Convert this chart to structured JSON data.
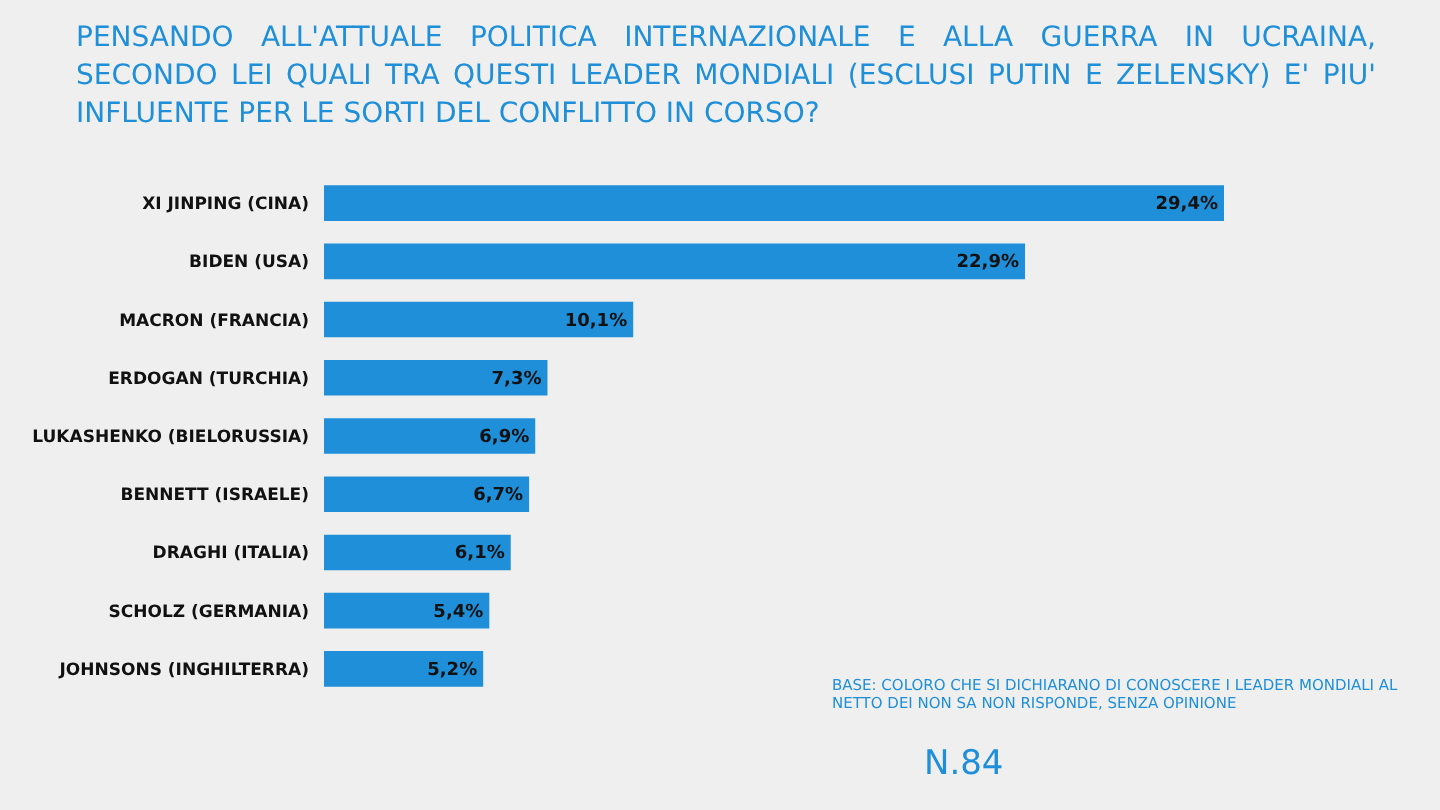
{
  "chart_data": {
    "type": "bar",
    "orientation": "horizontal",
    "title": "PENSANDO ALL'ATTUALE POLITICA INTERNAZIONALE E ALLA GUERRA IN UCRAINA, SECONDO LEI QUALI TRA QUESTI LEADER MONDIALI (ESCLUSI PUTIN E ZELENSKY) E' PIU' INFLUENTE PER LE SORTI DEL CONFLITTO IN CORSO?",
    "categories": [
      "XI JINPING (CINA)",
      "BIDEN (USA)",
      "MACRON (FRANCIA)",
      "ERDOGAN (TURCHIA)",
      "LUKASHENKO (BIELORUSSIA)",
      "BENNETT (ISRAELE)",
      "DRAGHI (ITALIA)",
      "SCHOLZ (GERMANIA)",
      "JOHNSONS (INGHILTERRA)"
    ],
    "values": [
      29.4,
      22.9,
      10.1,
      7.3,
      6.9,
      6.7,
      6.1,
      5.4,
      5.2
    ],
    "value_labels": [
      "29,4%",
      "22,9%",
      "10,1%",
      "7,3%",
      "6,9%",
      "6,7%",
      "6,1%",
      "5,4%",
      "5,2%"
    ],
    "color": "#1e8fd8",
    "annotations": [
      "BASE: COLORO CHE SI DICHIARANO DI CONOSCERE I LEADER MONDIALI AL NETTO DEI NON SA NON RISPONDE, SENZA OPINIONE",
      "N.84"
    ]
  }
}
